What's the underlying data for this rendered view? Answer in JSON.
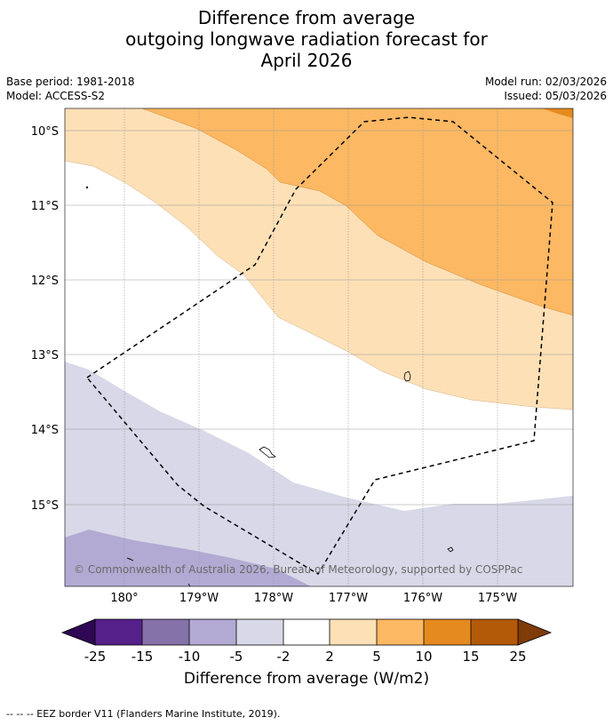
{
  "header": {
    "title_lines": [
      "Difference from average",
      "outgoing longwave radiation forecast for",
      "April 2026"
    ],
    "base_period": "Base period: 1981-2018",
    "model": "Model: ACCESS-S2",
    "model_run": "Model run: 02/03/2026",
    "issued": "Issued: 05/03/2026"
  },
  "map": {
    "lat_labels": [
      "10°S",
      "11°S",
      "12°S",
      "13°S",
      "14°S",
      "15°S"
    ],
    "lon_labels": [
      "180°",
      "179°W",
      "178°W",
      "177°W",
      "176°W",
      "175°W"
    ],
    "copyright": "© Commonwealth of Australia 2026, Bureau of Meteorology, supported by COSPPac",
    "colors": {
      "ocean_neutral": "#ffffff",
      "pos_2_5": "#fde0b6",
      "pos_5_10": "#fcb862",
      "pos_10_15": "#e48a1f",
      "neg_5_2": "#d8d8e8",
      "neg_10_5": "#b2aad2",
      "eez_border": "#000000",
      "gridline": "#9a9a9a"
    }
  },
  "colorbar": {
    "ticks": [
      "-25",
      "-15",
      "-10",
      "-5",
      "-2",
      "2",
      "5",
      "10",
      "15",
      "25"
    ],
    "colors": [
      "#55208a",
      "#8572a8",
      "#b2aad2",
      "#d8d8e8",
      "#ffffff",
      "#fde0b6",
      "#fcb862",
      "#e48a1f",
      "#b35a08"
    ],
    "under_color": "#2e0854",
    "over_color": "#7f3b08",
    "label": "Difference from average (W/m2)"
  },
  "footnote": "--  --  -- EEZ border V11 (Flanders Marine Institute, 2019)."
}
